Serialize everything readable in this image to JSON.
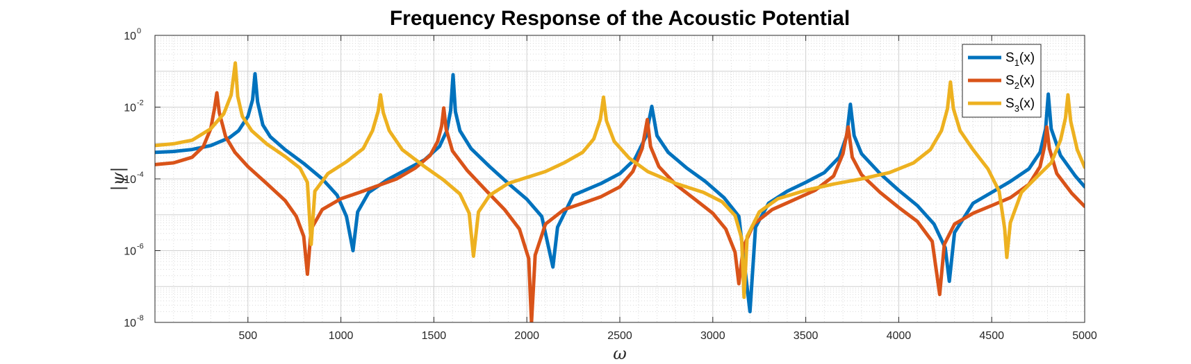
{
  "chart_data": {
    "type": "line",
    "title": "Frequency Response of the Acoustic Potential",
    "xlabel": "ω",
    "ylabel": "|ψ|",
    "xlim": [
      0,
      5000
    ],
    "ylim": [
      1e-08,
      1
    ],
    "yscale": "log",
    "grid": true,
    "minor_grid": true,
    "legend_position": "top-right",
    "x_ticks": [
      500,
      1000,
      1500,
      2000,
      2500,
      3000,
      3500,
      4000,
      4500,
      5000
    ],
    "y_ticks": [
      {
        "base": "10",
        "exp": "-8",
        "value": 1e-08
      },
      {
        "base": "10",
        "exp": "-6",
        "value": 1e-06
      },
      {
        "base": "10",
        "exp": "-4",
        "value": 0.0001
      },
      {
        "base": "10",
        "exp": "-2",
        "value": 0.01
      },
      {
        "base": "10",
        "exp": "0",
        "value": 1
      }
    ],
    "series": [
      {
        "name": "S1(x)",
        "legend_main": "S",
        "legend_sub": "1",
        "legend_tail": "(x)",
        "color": "#0072BD",
        "points": [
          [
            0,
            0.00055
          ],
          [
            100,
            0.00058
          ],
          [
            200,
            0.00066
          ],
          [
            300,
            0.00085
          ],
          [
            400,
            0.0014
          ],
          [
            450,
            0.0022
          ],
          [
            500,
            0.0055
          ],
          [
            525,
            0.016
          ],
          [
            538,
            0.085
          ],
          [
            552,
            0.014
          ],
          [
            580,
            0.0032
          ],
          [
            620,
            0.0015
          ],
          [
            700,
            0.00065
          ],
          [
            800,
            0.00027
          ],
          [
            900,
            0.0001
          ],
          [
            980,
            3.5e-05
          ],
          [
            1030,
            9e-06
          ],
          [
            1065,
            1e-06
          ],
          [
            1090,
            1.2e-05
          ],
          [
            1150,
            4.2e-05
          ],
          [
            1250,
            9.5e-05
          ],
          [
            1350,
            0.00018
          ],
          [
            1450,
            0.00034
          ],
          [
            1530,
            0.0008
          ],
          [
            1570,
            0.0022
          ],
          [
            1590,
            0.008
          ],
          [
            1603,
            0.08
          ],
          [
            1616,
            0.0075
          ],
          [
            1640,
            0.0022
          ],
          [
            1700,
            0.0007
          ],
          [
            1800,
            0.00022
          ],
          [
            1900,
            7.5e-05
          ],
          [
            2000,
            2.7e-05
          ],
          [
            2080,
            9e-06
          ],
          [
            2140,
            3.5e-07
          ],
          [
            2165,
            4.5e-06
          ],
          [
            2250,
            3.5e-05
          ],
          [
            2400,
            7.5e-05
          ],
          [
            2500,
            0.00014
          ],
          [
            2580,
            0.00035
          ],
          [
            2640,
            0.0015
          ],
          [
            2672,
            0.0105
          ],
          [
            2700,
            0.0016
          ],
          [
            2760,
            0.00055
          ],
          [
            2860,
            0.0002
          ],
          [
            2960,
            8.5e-05
          ],
          [
            3060,
            3e-05
          ],
          [
            3140,
            9e-06
          ],
          [
            3200,
            2e-08
          ],
          [
            3230,
            4.5e-06
          ],
          [
            3300,
            2.1e-05
          ],
          [
            3400,
            4.5e-05
          ],
          [
            3500,
            8e-05
          ],
          [
            3600,
            0.00015
          ],
          [
            3680,
            0.0004
          ],
          [
            3720,
            0.0016
          ],
          [
            3740,
            0.012
          ],
          [
            3760,
            0.0016
          ],
          [
            3800,
            0.0005
          ],
          [
            3900,
            0.00014
          ],
          [
            4000,
            4.8e-05
          ],
          [
            4100,
            1.8e-05
          ],
          [
            4190,
            5.5e-06
          ],
          [
            4250,
            1.2e-06
          ],
          [
            4272,
            1.4e-07
          ],
          [
            4300,
            3.2e-06
          ],
          [
            4400,
            2.1e-05
          ],
          [
            4500,
            4.2e-05
          ],
          [
            4600,
            8.5e-05
          ],
          [
            4700,
            0.00019
          ],
          [
            4760,
            0.00055
          ],
          [
            4790,
            0.0025
          ],
          [
            4804,
            0.023
          ],
          [
            4820,
            0.0025
          ],
          [
            4870,
            0.00045
          ],
          [
            4950,
            0.00012
          ],
          [
            5000,
            6e-05
          ]
        ]
      },
      {
        "name": "S2(x)",
        "legend_main": "S",
        "legend_sub": "2",
        "legend_tail": "(x)",
        "color": "#D95319",
        "points": [
          [
            0,
            0.00025
          ],
          [
            100,
            0.00028
          ],
          [
            200,
            0.0004
          ],
          [
            260,
            0.0008
          ],
          [
            300,
            0.0025
          ],
          [
            320,
            0.009
          ],
          [
            333,
            0.025
          ],
          [
            346,
            0.007
          ],
          [
            380,
            0.0015
          ],
          [
            430,
            0.00055
          ],
          [
            500,
            0.00022
          ],
          [
            600,
            7.5e-05
          ],
          [
            700,
            2.5e-05
          ],
          [
            760,
            9e-06
          ],
          [
            800,
            2.5e-06
          ],
          [
            820,
            2.2e-07
          ],
          [
            840,
            4e-06
          ],
          [
            900,
            1.4e-05
          ],
          [
            1000,
            2.8e-05
          ],
          [
            1100,
            4.2e-05
          ],
          [
            1200,
            6.5e-05
          ],
          [
            1300,
            0.0001
          ],
          [
            1400,
            0.0002
          ],
          [
            1480,
            0.00045
          ],
          [
            1520,
            0.0011
          ],
          [
            1542,
            0.003
          ],
          [
            1553,
            0.0095
          ],
          [
            1566,
            0.0024
          ],
          [
            1600,
            0.0006
          ],
          [
            1680,
            0.00017
          ],
          [
            1780,
            4.8e-05
          ],
          [
            1880,
            1.4e-05
          ],
          [
            1960,
            4e-06
          ],
          [
            2010,
            6e-07
          ],
          [
            2025,
            1e-08
          ],
          [
            2045,
            7.5e-07
          ],
          [
            2100,
            5.5e-06
          ],
          [
            2200,
            1.4e-05
          ],
          [
            2300,
            2.1e-05
          ],
          [
            2400,
            3.2e-05
          ],
          [
            2500,
            6e-05
          ],
          [
            2570,
            0.00016
          ],
          [
            2620,
            0.0007
          ],
          [
            2648,
            0.0045
          ],
          [
            2665,
            0.0008
          ],
          [
            2710,
            0.00022
          ],
          [
            2800,
            7e-05
          ],
          [
            2900,
            2.8e-05
          ],
          [
            3000,
            1.1e-05
          ],
          [
            3070,
            4e-06
          ],
          [
            3120,
            9e-07
          ],
          [
            3140,
            1.2e-07
          ],
          [
            3165,
            1.3e-06
          ],
          [
            3220,
            5.5e-06
          ],
          [
            3320,
            1.4e-05
          ],
          [
            3450,
            2.8e-05
          ],
          [
            3550,
            4.8e-05
          ],
          [
            3650,
            0.00012
          ],
          [
            3700,
            0.0005
          ],
          [
            3728,
            0.0028
          ],
          [
            3750,
            0.0004
          ],
          [
            3800,
            0.00013
          ],
          [
            3900,
            4.2e-05
          ],
          [
            4000,
            1.6e-05
          ],
          [
            4100,
            6.5e-06
          ],
          [
            4180,
            1.8e-06
          ],
          [
            4220,
            6e-08
          ],
          [
            4245,
            1.5e-06
          ],
          [
            4300,
            5.5e-06
          ],
          [
            4400,
            1.1e-05
          ],
          [
            4500,
            1.8e-05
          ],
          [
            4600,
            3e-05
          ],
          [
            4700,
            7e-05
          ],
          [
            4760,
            0.00022
          ],
          [
            4785,
            0.00085
          ],
          [
            4796,
            0.0028
          ],
          [
            4810,
            0.0007
          ],
          [
            4850,
            0.00014
          ],
          [
            4930,
            4e-05
          ],
          [
            5000,
            1.7e-05
          ]
        ]
      },
      {
        "name": "S3(x)",
        "legend_main": "S",
        "legend_sub": "3",
        "legend_tail": "(x)",
        "color": "#EDB120",
        "points": [
          [
            0,
            0.00085
          ],
          [
            100,
            0.00095
          ],
          [
            200,
            0.0012
          ],
          [
            300,
            0.0025
          ],
          [
            370,
            0.0065
          ],
          [
            410,
            0.022
          ],
          [
            432,
            0.17
          ],
          [
            445,
            0.02
          ],
          [
            470,
            0.0055
          ],
          [
            520,
            0.0022
          ],
          [
            600,
            0.00095
          ],
          [
            700,
            0.00042
          ],
          [
            780,
            0.0002
          ],
          [
            820,
            8e-05
          ],
          [
            840,
            1.5e-06
          ],
          [
            860,
            4.5e-05
          ],
          [
            930,
            0.00014
          ],
          [
            1030,
            0.0003
          ],
          [
            1120,
            0.0007
          ],
          [
            1170,
            0.0022
          ],
          [
            1200,
            0.0075
          ],
          [
            1213,
            0.022
          ],
          [
            1228,
            0.007
          ],
          [
            1260,
            0.0022
          ],
          [
            1330,
            0.00065
          ],
          [
            1450,
            0.00022
          ],
          [
            1550,
            9.5e-05
          ],
          [
            1640,
            3.8e-05
          ],
          [
            1690,
            1.1e-05
          ],
          [
            1713,
            7e-07
          ],
          [
            1740,
            1.2e-05
          ],
          [
            1800,
            3.5e-05
          ],
          [
            1900,
            7.5e-05
          ],
          [
            2000,
            0.00011
          ],
          [
            2100,
            0.00016
          ],
          [
            2200,
            0.00028
          ],
          [
            2300,
            0.00055
          ],
          [
            2360,
            0.0013
          ],
          [
            2395,
            0.0045
          ],
          [
            2412,
            0.019
          ],
          [
            2428,
            0.0042
          ],
          [
            2470,
            0.0011
          ],
          [
            2550,
            0.00038
          ],
          [
            2650,
            0.00016
          ],
          [
            2800,
            7.5e-05
          ],
          [
            2950,
            4.2e-05
          ],
          [
            3050,
            2.3e-05
          ],
          [
            3120,
            9.5e-06
          ],
          [
            3155,
            2.2e-06
          ],
          [
            3168,
            5e-08
          ],
          [
            3185,
            2.5e-06
          ],
          [
            3250,
            1.2e-05
          ],
          [
            3350,
            2.8e-05
          ],
          [
            3500,
            4.8e-05
          ],
          [
            3650,
            7.2e-05
          ],
          [
            3800,
            0.0001
          ],
          [
            3950,
            0.00015
          ],
          [
            4080,
            0.00028
          ],
          [
            4170,
            0.00065
          ],
          [
            4230,
            0.0022
          ],
          [
            4262,
            0.009
          ],
          [
            4278,
            0.05
          ],
          [
            4294,
            0.009
          ],
          [
            4330,
            0.0022
          ],
          [
            4400,
            0.00065
          ],
          [
            4480,
            0.00019
          ],
          [
            4540,
            4.5e-05
          ],
          [
            4570,
            4e-06
          ],
          [
            4581,
            6.5e-07
          ],
          [
            4600,
            6e-06
          ],
          [
            4660,
            4.2e-05
          ],
          [
            4740,
            0.00011
          ],
          [
            4820,
            0.00028
          ],
          [
            4870,
            0.0012
          ],
          [
            4897,
            0.005
          ],
          [
            4910,
            0.022
          ],
          [
            4925,
            0.004
          ],
          [
            4960,
            0.00065
          ],
          [
            5000,
            0.00021
          ]
        ]
      }
    ]
  }
}
